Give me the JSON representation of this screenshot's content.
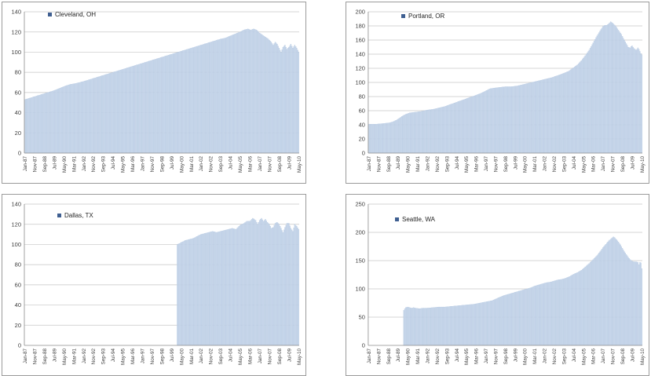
{
  "page": {
    "background": "#ffffff"
  },
  "colors": {
    "bar_fill": "#cad8eb",
    "bar_border": "#a9c0dd",
    "grid": "#c6c6c6",
    "axis": "#8c8c8c",
    "panel_border": "#9b9b9b",
    "legend_marker": "#3f5f91",
    "tick_text": "#3d3d3d",
    "legend_text": "#1f1f1f"
  },
  "x_axis": {
    "unit": "months since Jan-1987",
    "months": 281,
    "tick_interval_months": 10,
    "first_label": "Jan-87",
    "last_label": "May-10",
    "tick_labels": [
      "Jan-87",
      "Nov-87",
      "Sep-88",
      "Jul-89",
      "May-90",
      "Mar-91",
      "Jan-92",
      "Nov-92",
      "Sep-93",
      "Jul-94",
      "May-95",
      "Mar-96",
      "Jan-97",
      "Nov-97",
      "Sep-98",
      "Jul-99",
      "May-00",
      "Mar-01",
      "Jan-02",
      "Nov-02",
      "Sep-03",
      "Jul-04",
      "May-05",
      "Mar-06",
      "Jan-07",
      "Nov-07",
      "Sep-08",
      "Jul-09",
      "May-10"
    ]
  },
  "chart_data": [
    {
      "type": "bar",
      "title": "",
      "xlabel": "",
      "ylabel": "",
      "legend": "Cleveland, OH",
      "legend_position": "inside-top-left",
      "grid": true,
      "ylim": [
        0,
        140
      ],
      "y_step": 20,
      "y_ticks": [
        0,
        20,
        40,
        60,
        80,
        100,
        120,
        140
      ],
      "series": [
        {
          "name": "Cleveland, OH",
          "x_unit": "months since Jan-1987",
          "anchors": [
            [
              0,
              53
            ],
            [
              10,
              56
            ],
            [
              20,
              59
            ],
            [
              30,
              62
            ],
            [
              40,
              66
            ],
            [
              46,
              68
            ],
            [
              52,
              69
            ],
            [
              60,
              71
            ],
            [
              70,
              74
            ],
            [
              80,
              77
            ],
            [
              90,
              80
            ],
            [
              100,
              83
            ],
            [
              110,
              86
            ],
            [
              120,
              89
            ],
            [
              130,
              92
            ],
            [
              140,
              95
            ],
            [
              150,
              98
            ],
            [
              160,
              101
            ],
            [
              170,
              104
            ],
            [
              180,
              107
            ],
            [
              190,
              110
            ],
            [
              200,
              113
            ],
            [
              205,
              114
            ],
            [
              210,
              116
            ],
            [
              215,
              118
            ],
            [
              220,
              120
            ],
            [
              224,
              122
            ],
            [
              228,
              123
            ],
            [
              231,
              122
            ],
            [
              234,
              123
            ],
            [
              237,
              122
            ],
            [
              240,
              119
            ],
            [
              243,
              117
            ],
            [
              246,
              115
            ],
            [
              249,
              113
            ],
            [
              252,
              110
            ],
            [
              254,
              107
            ],
            [
              256,
              110
            ],
            [
              258,
              108
            ],
            [
              260,
              104
            ],
            [
              262,
              100
            ],
            [
              264,
              105
            ],
            [
              266,
              107
            ],
            [
              268,
              103
            ],
            [
              270,
              105
            ],
            [
              272,
              108
            ],
            [
              274,
              104
            ],
            [
              276,
              107
            ],
            [
              278,
              104
            ],
            [
              280,
              100
            ]
          ]
        }
      ]
    },
    {
      "type": "bar",
      "title": "",
      "xlabel": "",
      "ylabel": "",
      "legend": "Portland, OR",
      "legend_position": "inside-top-left",
      "grid": true,
      "ylim": [
        0,
        200
      ],
      "y_step": 20,
      "y_ticks": [
        0,
        20,
        40,
        60,
        80,
        100,
        120,
        140,
        160,
        180,
        200
      ],
      "series": [
        {
          "name": "Portland, OR",
          "x_unit": "months since Jan-1987",
          "anchors": [
            [
              0,
              41
            ],
            [
              8,
              41
            ],
            [
              16,
              42
            ],
            [
              22,
              43
            ],
            [
              26,
              45
            ],
            [
              30,
              48
            ],
            [
              34,
              52
            ],
            [
              38,
              55
            ],
            [
              42,
              57
            ],
            [
              48,
              58
            ],
            [
              54,
              59
            ],
            [
              60,
              61
            ],
            [
              66,
              62
            ],
            [
              72,
              64
            ],
            [
              78,
              66
            ],
            [
              84,
              69
            ],
            [
              90,
              72
            ],
            [
              96,
              75
            ],
            [
              102,
              78
            ],
            [
              108,
              81
            ],
            [
              114,
              84
            ],
            [
              120,
              88
            ],
            [
              124,
              91
            ],
            [
              128,
              92
            ],
            [
              134,
              93
            ],
            [
              140,
              94
            ],
            [
              146,
              94
            ],
            [
              152,
              95
            ],
            [
              158,
              97
            ],
            [
              164,
              99
            ],
            [
              170,
              101
            ],
            [
              176,
              103
            ],
            [
              182,
              105
            ],
            [
              188,
              107
            ],
            [
              194,
              110
            ],
            [
              200,
              113
            ],
            [
              205,
              116
            ],
            [
              210,
              121
            ],
            [
              214,
              125
            ],
            [
              218,
              131
            ],
            [
              222,
              138
            ],
            [
              226,
              146
            ],
            [
              230,
              156
            ],
            [
              234,
              166
            ],
            [
              238,
              175
            ],
            [
              240,
              179
            ],
            [
              242,
              181
            ],
            [
              244,
              181
            ],
            [
              246,
              183
            ],
            [
              248,
              186
            ],
            [
              250,
              184
            ],
            [
              253,
              180
            ],
            [
              256,
              174
            ],
            [
              259,
              168
            ],
            [
              262,
              160
            ],
            [
              264,
              155
            ],
            [
              266,
              150
            ],
            [
              268,
              149
            ],
            [
              269,
              151
            ],
            [
              270,
              152
            ],
            [
              272,
              148
            ],
            [
              274,
              146
            ],
            [
              275,
              147
            ],
            [
              276,
              149
            ],
            [
              277,
              147
            ],
            [
              278,
              144
            ],
            [
              279,
              141
            ],
            [
              280,
              139
            ]
          ]
        }
      ]
    },
    {
      "type": "bar",
      "title": "",
      "xlabel": "",
      "ylabel": "",
      "legend": "Dallas, TX",
      "legend_position": "inside-top-left",
      "grid": true,
      "ylim": [
        0,
        140
      ],
      "y_step": 20,
      "y_ticks": [
        0,
        20,
        40,
        60,
        80,
        100,
        120,
        140
      ],
      "series": [
        {
          "name": "Dallas, TX",
          "x_unit": "months since Jan-1987",
          "anchors": [
            [
              156,
              100
            ],
            [
              160,
              102
            ],
            [
              164,
              104
            ],
            [
              168,
              105
            ],
            [
              172,
              106
            ],
            [
              176,
              108
            ],
            [
              180,
              110
            ],
            [
              184,
              111
            ],
            [
              188,
              112
            ],
            [
              192,
              113
            ],
            [
              196,
              112
            ],
            [
              200,
              113
            ],
            [
              204,
              114
            ],
            [
              208,
              115
            ],
            [
              212,
              116
            ],
            [
              216,
              115
            ],
            [
              220,
              119
            ],
            [
              224,
              121
            ],
            [
              227,
              123
            ],
            [
              230,
              123
            ],
            [
              233,
              126
            ],
            [
              236,
              124
            ],
            [
              238,
              120
            ],
            [
              240,
              124
            ],
            [
              242,
              126
            ],
            [
              244,
              123
            ],
            [
              246,
              125
            ],
            [
              248,
              122
            ],
            [
              250,
              120
            ],
            [
              252,
              116
            ],
            [
              254,
              117
            ],
            [
              256,
              121
            ],
            [
              258,
              122
            ],
            [
              260,
              120
            ],
            [
              262,
              116
            ],
            [
              264,
              112
            ],
            [
              266,
              117
            ],
            [
              268,
              121
            ],
            [
              270,
              121
            ],
            [
              272,
              116
            ],
            [
              274,
              113
            ],
            [
              276,
              120
            ],
            [
              278,
              118
            ],
            [
              280,
              115
            ]
          ]
        }
      ]
    },
    {
      "type": "bar",
      "title": "",
      "xlabel": "",
      "ylabel": "",
      "legend": "Seattle, WA",
      "legend_position": "inside-top-left",
      "grid": true,
      "ylim": [
        0,
        250
      ],
      "y_step": 50,
      "y_ticks": [
        0,
        50,
        100,
        150,
        200,
        250
      ],
      "series": [
        {
          "name": "Seattle, WA",
          "x_unit": "months since Jan-1987",
          "anchors": [
            [
              36,
              62
            ],
            [
              37,
              65
            ],
            [
              38,
              67
            ],
            [
              40,
              68
            ],
            [
              42,
              67
            ],
            [
              44,
              66
            ],
            [
              46,
              67
            ],
            [
              48,
              66
            ],
            [
              52,
              65
            ],
            [
              56,
              66
            ],
            [
              60,
              66
            ],
            [
              66,
              67
            ],
            [
              72,
              68
            ],
            [
              78,
              68
            ],
            [
              84,
              69
            ],
            [
              90,
              70
            ],
            [
              96,
              71
            ],
            [
              102,
              72
            ],
            [
              108,
              73
            ],
            [
              114,
              75
            ],
            [
              120,
              77
            ],
            [
              126,
              79
            ],
            [
              130,
              82
            ],
            [
              134,
              85
            ],
            [
              138,
              88
            ],
            [
              142,
              90
            ],
            [
              146,
              92
            ],
            [
              150,
              94
            ],
            [
              154,
              96
            ],
            [
              158,
              98
            ],
            [
              162,
              100
            ],
            [
              166,
              102
            ],
            [
              170,
              105
            ],
            [
              174,
              107
            ],
            [
              178,
              109
            ],
            [
              182,
              111
            ],
            [
              186,
              112
            ],
            [
              190,
              114
            ],
            [
              194,
              116
            ],
            [
              198,
              117
            ],
            [
              202,
              119
            ],
            [
              206,
              122
            ],
            [
              210,
              126
            ],
            [
              214,
              129
            ],
            [
              218,
              133
            ],
            [
              222,
              139
            ],
            [
              226,
              145
            ],
            [
              230,
              152
            ],
            [
              234,
              159
            ],
            [
              238,
              168
            ],
            [
              240,
              173
            ],
            [
              242,
              177
            ],
            [
              244,
              181
            ],
            [
              246,
              185
            ],
            [
              248,
              188
            ],
            [
              250,
              191
            ],
            [
              251,
              192
            ],
            [
              252,
              191
            ],
            [
              254,
              187
            ],
            [
              256,
              183
            ],
            [
              258,
              178
            ],
            [
              260,
              172
            ],
            [
              262,
              166
            ],
            [
              264,
              161
            ],
            [
              266,
              156
            ],
            [
              268,
              152
            ],
            [
              270,
              149
            ],
            [
              272,
              148
            ],
            [
              274,
              148
            ],
            [
              276,
              147
            ],
            [
              277,
              143
            ],
            [
              278,
              147
            ],
            [
              279,
              146
            ],
            [
              280,
              136
            ]
          ]
        }
      ]
    }
  ]
}
